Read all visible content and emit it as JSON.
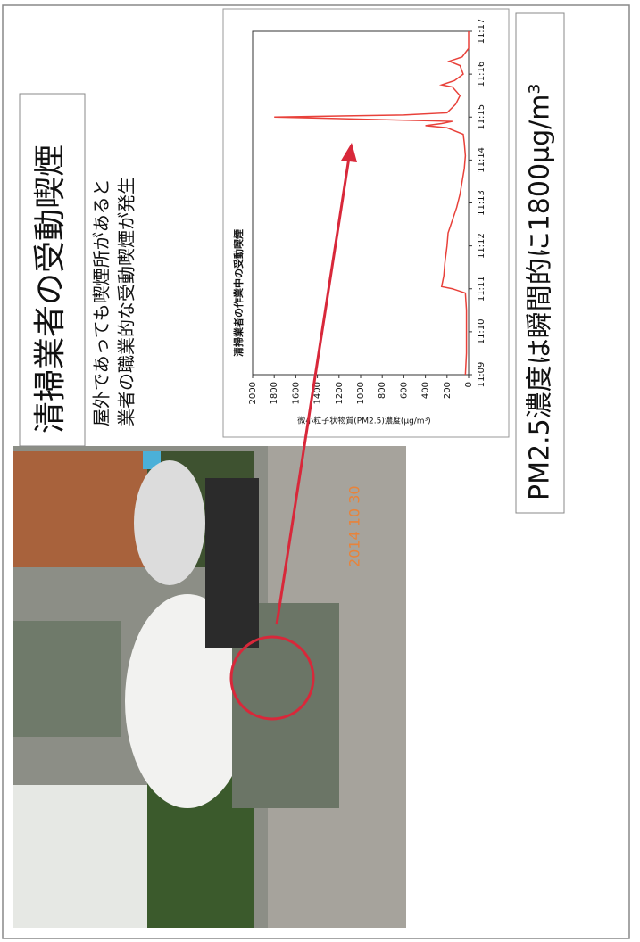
{
  "title": "清掃業者の受動喫煙",
  "subtitle_lines": [
    "屋外であっても喫煙所があると",
    "業者の職業的な受動喫煙が発生"
  ],
  "photo_date": "2014 10 30",
  "conclusion": "PM2.5濃度は瞬間的に1800μg/m³",
  "chart_data": {
    "type": "line",
    "title": "清掃業者の作業中の受動喫煙",
    "y_label": "微小粒子状物質(PM2.5)濃度(μg/m³)",
    "x": [
      9,
      9.5,
      10,
      10.5,
      10.9,
      11,
      11.05,
      11.3,
      11.6,
      12,
      12.3,
      12.6,
      12.9,
      13.2,
      13.5,
      13.8,
      14.1,
      14.4,
      14.6,
      14.75,
      14.8,
      14.85,
      14.9,
      15,
      15.05,
      15.1,
      15.3,
      15.5,
      15.7,
      15.75,
      15.85,
      16,
      16.2,
      16.3,
      16.4,
      16.6,
      17
    ],
    "series": [
      {
        "color": "#e8413a",
        "values": [
          30,
          20,
          20,
          20,
          30,
          150,
          250,
          230,
          220,
          200,
          190,
          150,
          110,
          80,
          60,
          40,
          30,
          40,
          50,
          200,
          400,
          250,
          150,
          1800,
          600,
          200,
          120,
          80,
          150,
          250,
          130,
          50,
          80,
          180,
          60,
          0,
          0
        ]
      }
    ],
    "xlim": [
      9,
      17
    ],
    "xticks": [
      {
        "value": 9,
        "label": "11:09"
      },
      {
        "value": 10,
        "label": "11:10"
      },
      {
        "value": 11,
        "label": "11:11"
      },
      {
        "value": 12,
        "label": "11:12"
      },
      {
        "value": 13,
        "label": "11:13"
      },
      {
        "value": 14,
        "label": "11:14"
      },
      {
        "value": 15,
        "label": "11:15"
      },
      {
        "value": 16,
        "label": "11:16"
      },
      {
        "value": 17,
        "label": "11:17"
      }
    ],
    "ylim": [
      0,
      2000
    ],
    "yticks": [
      0,
      200,
      400,
      600,
      800,
      1000,
      1200,
      1400,
      1600,
      1800,
      2000
    ]
  }
}
